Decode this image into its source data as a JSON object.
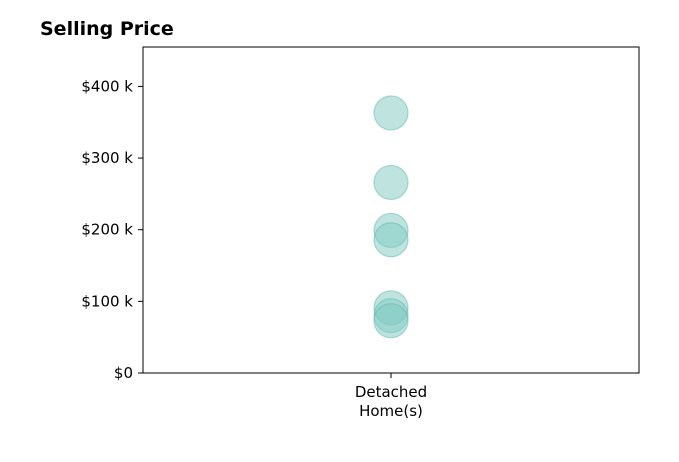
{
  "chart_data": {
    "type": "scatter",
    "title": "Selling Price",
    "categories": [
      "Detached\nHome(s)"
    ],
    "x_tick_lines": [
      "Detached",
      "Home(s)"
    ],
    "points": [
      {
        "category": "Detached\nHome(s)",
        "value": 363000
      },
      {
        "category": "Detached\nHome(s)",
        "value": 266000
      },
      {
        "category": "Detached\nHome(s)",
        "value": 199000
      },
      {
        "category": "Detached\nHome(s)",
        "value": 186000
      },
      {
        "category": "Detached\nHome(s)",
        "value": 91000
      },
      {
        "category": "Detached\nHome(s)",
        "value": 80000
      },
      {
        "category": "Detached\nHome(s)",
        "value": 73000
      }
    ],
    "y_ticks": [
      0,
      100000,
      200000,
      300000,
      400000
    ],
    "y_tick_labels": [
      "$0",
      "$100 k",
      "$200 k",
      "$300 k",
      "$400 k"
    ],
    "ylim": [
      0,
      455000
    ],
    "xlabel": "",
    "ylabel": "",
    "grid": false,
    "marker_color": "#7fc9c1",
    "marker_edge_color": "#5fb5ab"
  }
}
